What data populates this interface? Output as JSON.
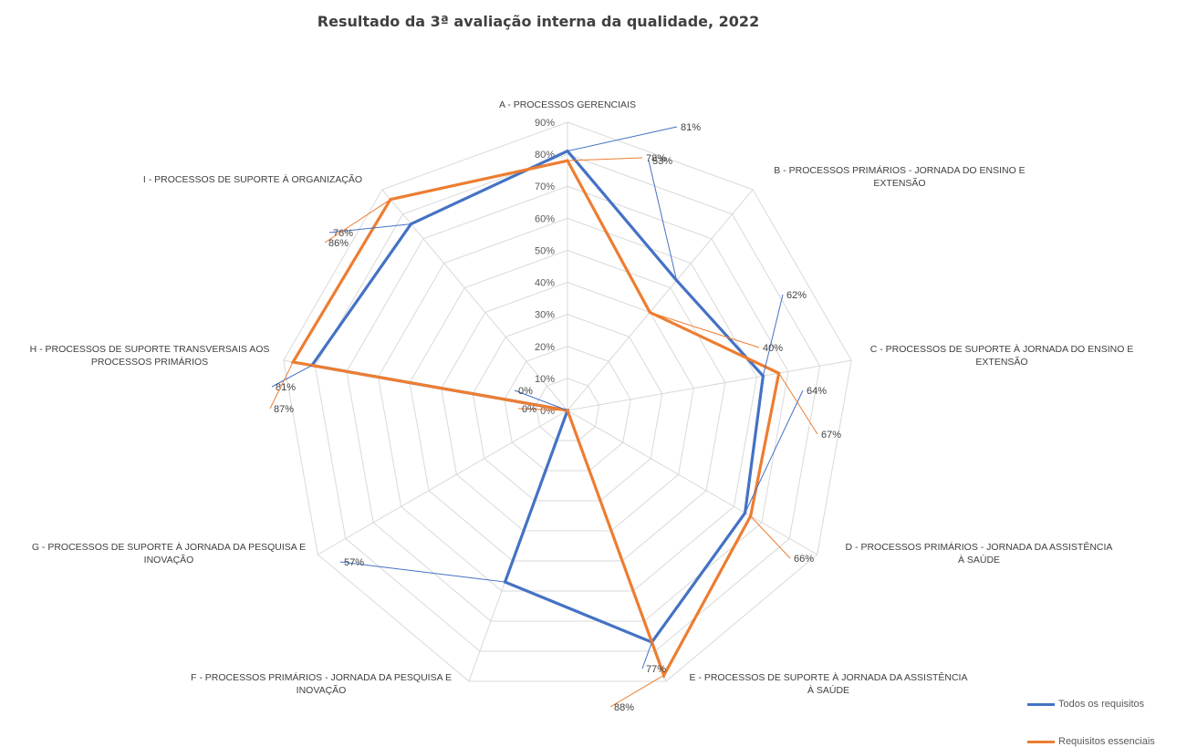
{
  "chart_data": {
    "type": "radar",
    "title": "Resultado da 3ª avaliação interna da qualidade, 2022",
    "categories": [
      "A - PROCESSOS GERENCIAIS",
      "B - PROCESSOS PRIMÁRIOS - JORNADA DO ENSINO E EXTENSÃO",
      "C - PROCESSOS DE SUPORTE À JORNADA DO ENSINO E EXTENSÃO",
      "D - PROCESSOS PRIMÁRIOS - JORNADA DA ASSISTÊNCIA À SAÚDE",
      "E - PROCESSOS DE SUPORTE À JORNADA DA ASSISTÊNCIA À SAÚDE",
      "F - PROCESSOS PRIMÁRIOS - JORNADA DA PESQUISA E INOVAÇÃO",
      "G - PROCESSOS DE SUPORTE À JORNADA DA PESQUISA E INOVAÇÃO",
      "H - PROCESSOS DE SUPORTE TRANSVERSAIS AOS PROCESSOS PRIMÁRIOS",
      "I - PROCESSOS DE SUPORTE À ORGANIZAÇÃO"
    ],
    "category_lines": [
      [
        "A - PROCESSOS GERENCIAIS"
      ],
      [
        "B - PROCESSOS PRIMÁRIOS - JORNADA DO ENSINO E",
        "EXTENSÃO"
      ],
      [
        "C - PROCESSOS DE SUPORTE À JORNADA DO ENSINO E",
        "EXTENSÃO"
      ],
      [
        "D - PROCESSOS PRIMÁRIOS - JORNADA DA ASSISTÊNCIA",
        "À SAÚDE"
      ],
      [
        "E - PROCESSOS DE SUPORTE À JORNADA DA ASSISTÊNCIA",
        "À SAÚDE"
      ],
      [
        "F - PROCESSOS PRIMÁRIOS - JORNADA DA PESQUISA E",
        "INOVAÇÃO"
      ],
      [
        "G - PROCESSOS DE SUPORTE À JORNADA DA PESQUISA E",
        "INOVAÇÃO"
      ],
      [
        "H - PROCESSOS DE SUPORTE TRANSVERSAIS AOS",
        "PROCESSOS PRIMÁRIOS"
      ],
      [
        "I - PROCESSOS DE SUPORTE À ORGANIZAÇÃO"
      ]
    ],
    "series": [
      {
        "name": "Todos os requisitos",
        "color": "#4472C4",
        "values": [
          81,
          53,
          62,
          64,
          77,
          57,
          0,
          81,
          76
        ]
      },
      {
        "name": "Requisitos essenciais",
        "color": "#ED7D31",
        "values": [
          78,
          40,
          67,
          66,
          88,
          null,
          0,
          87,
          86
        ]
      }
    ],
    "data_labels": [
      [
        "81%",
        "53%",
        "62%",
        "64%",
        "77%",
        "57%",
        "0%",
        "81%",
        "76%"
      ],
      [
        "78%",
        "40%",
        "67%",
        "66%",
        "88%",
        "",
        "0%",
        "87%",
        "86%"
      ]
    ],
    "r_ticks": [
      "0%",
      "10%",
      "20%",
      "30%",
      "40%",
      "50%",
      "60%",
      "70%",
      "80%",
      "90%"
    ],
    "r_range": [
      0,
      90
    ],
    "grid": true,
    "legend_position": "bottom-right"
  }
}
